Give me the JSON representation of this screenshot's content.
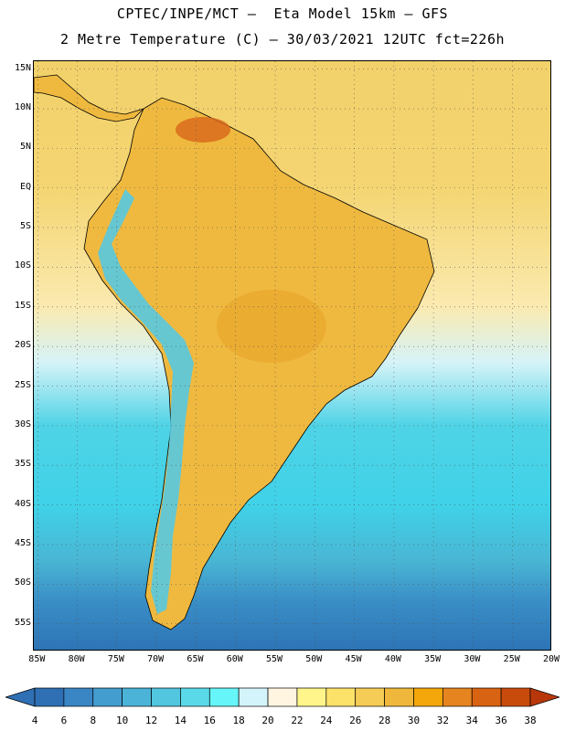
{
  "header": {
    "line1": "CPTEC/INPE/MCT –  Eta Model 15km – GFS",
    "line2": "2 Metre Temperature (C) – 30/03/2021 12UTC fct=226h"
  },
  "map": {
    "lat_labels": [
      "15N",
      "10N",
      "5N",
      "EQ",
      "5S",
      "10S",
      "15S",
      "20S",
      "25S",
      "30S",
      "35S",
      "40S",
      "45S",
      "50S",
      "55S"
    ],
    "lon_labels": [
      "85W",
      "80W",
      "75W",
      "70W",
      "65W",
      "60W",
      "55W",
      "50W",
      "45W",
      "40W",
      "35W",
      "30W",
      "25W",
      "20W"
    ],
    "lat_values": [
      15,
      10,
      5,
      0,
      -5,
      -10,
      -15,
      -20,
      -25,
      -30,
      -35,
      -40,
      -45,
      -50,
      -55
    ],
    "lon_values": [
      -85,
      -80,
      -75,
      -70,
      -65,
      -60,
      -55,
      -50,
      -45,
      -40,
      -35,
      -30,
      -25,
      -20
    ],
    "extent": {
      "lon_min": -85.5,
      "lon_max": -20,
      "lat_min": -58.5,
      "lat_max": 16
    },
    "grid_lines": "dotted",
    "ocean_gradient": [
      {
        "lat": 16,
        "color": "#f2d16a"
      },
      {
        "lat": 0,
        "color": "#f4d572"
      },
      {
        "lat": -15,
        "color": "#fbeab0"
      },
      {
        "lat": -22,
        "color": "#d6f3f8"
      },
      {
        "lat": -30,
        "color": "#4fd3e6"
      },
      {
        "lat": -40,
        "color": "#3fd2e8"
      },
      {
        "lat": -47,
        "color": "#49b6d4"
      },
      {
        "lat": -52,
        "color": "#3a8fc6"
      },
      {
        "lat": -58.5,
        "color": "#2d73b6"
      }
    ],
    "land_color": "#efb93f",
    "andes_color": "#56c9e0"
  },
  "colorbar": {
    "labels": [
      "4",
      "6",
      "8",
      "10",
      "12",
      "14",
      "16",
      "18",
      "20",
      "22",
      "24",
      "26",
      "28",
      "30",
      "32",
      "34",
      "36",
      "38"
    ],
    "colors": [
      "#2f6fb3",
      "#2f6fb3",
      "#3a86c4",
      "#449dcf",
      "#4bb3d8",
      "#52c6df",
      "#5ad9e8",
      "#66f5f8",
      "#d3f4fb",
      "#fff5e0",
      "#fff58a",
      "#fde26a",
      "#f5cc55",
      "#efb83c",
      "#f3a70b",
      "#e68520",
      "#d86312",
      "#c84b0c",
      "#b8370a"
    ]
  }
}
